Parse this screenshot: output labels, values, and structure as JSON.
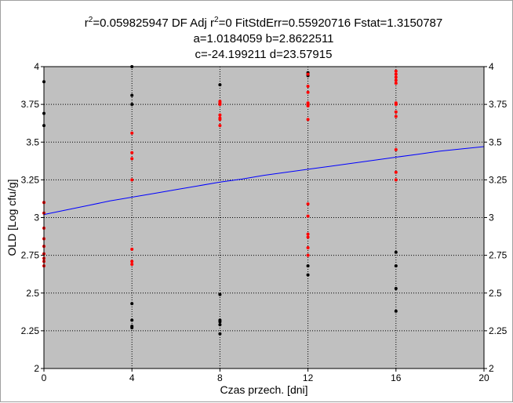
{
  "chart_data": {
    "type": "scatter",
    "title_lines": [
      {
        "segments": [
          {
            "text": "r"
          },
          {
            "text": "2",
            "sup": true
          },
          {
            "text": "=0.059825947  DF Adj r"
          },
          {
            "text": "2",
            "sup": true
          },
          {
            "text": "=0  FitStdErr=0.55920716  Fstat=1.3150787"
          }
        ]
      },
      {
        "segments": [
          {
            "text": "a=1.0184059 b=2.8622511"
          }
        ]
      },
      {
        "segments": [
          {
            "text": "c=-24.199211 d=23.57915"
          }
        ]
      }
    ],
    "xlabel": "Czas przech. [dni]",
    "ylabel": "OLD [Log cfu/g]",
    "xlim": [
      0,
      20
    ],
    "ylim": [
      2,
      4
    ],
    "x_ticks": [
      {
        "value": 0,
        "label": "0"
      },
      {
        "value": 4,
        "label": "4"
      },
      {
        "value": 8,
        "label": "8"
      },
      {
        "value": 12,
        "label": "12"
      },
      {
        "value": 16,
        "label": "16"
      },
      {
        "value": 20,
        "label": "20"
      }
    ],
    "y_ticks": [
      {
        "value": 2,
        "label": "2"
      },
      {
        "value": 2.25,
        "label": "2.25"
      },
      {
        "value": 2.5,
        "label": "2.5"
      },
      {
        "value": 2.75,
        "label": "2.75"
      },
      {
        "value": 3,
        "label": "3"
      },
      {
        "value": 3.25,
        "label": "3.25"
      },
      {
        "value": 3.5,
        "label": "3.5"
      },
      {
        "value": 3.75,
        "label": "3.75"
      },
      {
        "value": 4,
        "label": "4"
      }
    ],
    "grid": true,
    "plot_background": "#c0c0c0",
    "series": [
      {
        "color": "#000000",
        "kind": "points",
        "points": [
          [
            0,
            3.9
          ],
          [
            0,
            3.69
          ],
          [
            0,
            3.61
          ],
          [
            4,
            4.0
          ],
          [
            4,
            3.81
          ],
          [
            4,
            3.75
          ],
          [
            4,
            2.43
          ],
          [
            4,
            2.32
          ],
          [
            4,
            2.28
          ],
          [
            4,
            2.27
          ],
          [
            8,
            3.88
          ],
          [
            8,
            2.49
          ],
          [
            8,
            2.32
          ],
          [
            8,
            2.31
          ],
          [
            8,
            2.29
          ],
          [
            8,
            2.23
          ],
          [
            12,
            3.96
          ],
          [
            12,
            3.95
          ],
          [
            12,
            3.94
          ],
          [
            12,
            2.68
          ],
          [
            12,
            2.62
          ],
          [
            16,
            2.77
          ],
          [
            16,
            2.68
          ],
          [
            16,
            2.53
          ],
          [
            16,
            2.38
          ]
        ]
      },
      {
        "color": "#ff0000",
        "kind": "points",
        "points": [
          [
            0,
            3.1
          ],
          [
            0,
            3.03
          ],
          [
            0,
            2.93
          ],
          [
            0,
            2.86
          ],
          [
            0,
            2.81
          ],
          [
            0,
            2.76
          ],
          [
            0,
            2.73
          ],
          [
            0,
            2.71
          ],
          [
            0,
            2.68
          ],
          [
            4,
            3.56
          ],
          [
            4,
            3.43
          ],
          [
            4,
            3.39
          ],
          [
            4,
            3.25
          ],
          [
            4,
            2.79
          ],
          [
            4,
            2.71
          ],
          [
            4,
            2.69
          ],
          [
            8,
            3.77
          ],
          [
            8,
            3.76
          ],
          [
            8,
            3.75
          ],
          [
            8,
            3.68
          ],
          [
            8,
            3.66
          ],
          [
            8,
            3.65
          ],
          [
            8,
            3.61
          ],
          [
            12,
            3.95
          ],
          [
            12,
            3.87
          ],
          [
            12,
            3.83
          ],
          [
            12,
            3.76
          ],
          [
            12,
            3.75
          ],
          [
            12,
            3.74
          ],
          [
            12,
            3.65
          ],
          [
            12,
            3.09
          ],
          [
            12,
            3.01
          ],
          [
            12,
            2.89
          ],
          [
            12,
            2.87
          ],
          [
            12,
            2.8
          ],
          [
            12,
            2.75
          ],
          [
            16,
            3.97
          ],
          [
            16,
            3.95
          ],
          [
            16,
            3.93
          ],
          [
            16,
            3.91
          ],
          [
            16,
            3.89
          ],
          [
            16,
            3.76
          ],
          [
            16,
            3.75
          ],
          [
            16,
            3.7
          ],
          [
            16,
            3.67
          ],
          [
            16,
            3.45
          ],
          [
            16,
            3.3
          ],
          [
            16,
            3.25
          ]
        ]
      },
      {
        "color": "#0000ff",
        "kind": "line",
        "points": [
          [
            0,
            3.02
          ],
          [
            1,
            3.05
          ],
          [
            2,
            3.08
          ],
          [
            3,
            3.11
          ],
          [
            4,
            3.135
          ],
          [
            5,
            3.16
          ],
          [
            6,
            3.185
          ],
          [
            7,
            3.21
          ],
          [
            8,
            3.235
          ],
          [
            9,
            3.255
          ],
          [
            10,
            3.28
          ],
          [
            11,
            3.3
          ],
          [
            12,
            3.32
          ],
          [
            13,
            3.34
          ],
          [
            14,
            3.36
          ],
          [
            15,
            3.38
          ],
          [
            16,
            3.4
          ],
          [
            17,
            3.42
          ],
          [
            18,
            3.44
          ],
          [
            19,
            3.455
          ],
          [
            20,
            3.47
          ]
        ]
      }
    ]
  }
}
